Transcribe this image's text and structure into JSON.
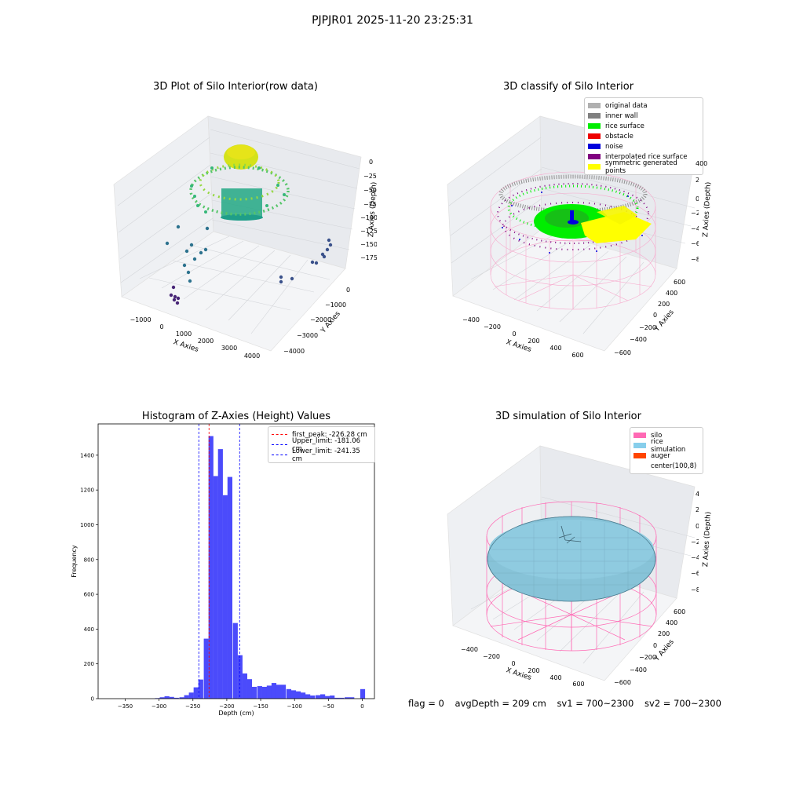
{
  "figure": {
    "suptitle": "PJPJR01 2025-11-20 23:25:31"
  },
  "panels": {
    "p1": {
      "title": "3D Plot of Silo Interior(row data)",
      "xlabel": "X Axies",
      "ylabel": "Y Axies",
      "zlabel": "Z Axies (Depth)",
      "xticks": [
        "−1000",
        "0",
        "1000",
        "2000",
        "3000",
        "4000"
      ],
      "yticks": [
        "0",
        "−1000",
        "−2000",
        "−3000",
        "−4000"
      ],
      "zticks": [
        "0",
        "−250",
        "−500",
        "−750",
        "−1000",
        "−1250",
        "−1500",
        "−1750"
      ]
    },
    "p2": {
      "title": "3D classify of Silo Interior",
      "xlabel": "X Axies",
      "ylabel": "Y Axies",
      "zlabel": "Z Axies (Depth)",
      "xticks": [
        "−400",
        "−200",
        "0",
        "200",
        "400",
        "600"
      ],
      "yticks": [
        "600",
        "400",
        "200",
        "0",
        "−200",
        "−400",
        "−600"
      ],
      "zticks": [
        "400",
        "200",
        "0",
        "−200",
        "−400",
        "−600",
        "−800"
      ],
      "legend": [
        {
          "label": "original data",
          "color": "#b0b0b0"
        },
        {
          "label": "inner wall",
          "color": "#808080"
        },
        {
          "label": "rice surface",
          "color": "#00ee00"
        },
        {
          "label": "obstacle",
          "color": "#ee0000"
        },
        {
          "label": "noise",
          "color": "#0000dd"
        },
        {
          "label": "interpolated rice surface",
          "color": "#800080"
        },
        {
          "label": "symmetric generated points",
          "color": "#ffff00"
        }
      ]
    },
    "p3": {
      "title": "Histogram of Z-Axies (Height) Values",
      "xlabel": "Depth (cm)",
      "ylabel": "Frequency",
      "legend": [
        {
          "label": "first_peak: -226.28 cm",
          "color": "#ff0000"
        },
        {
          "label": "Upper_limit: -181.06 cm",
          "color": "#0000ff"
        },
        {
          "label": "Lower_limit: -241.35 cm",
          "color": "#0000ff"
        }
      ]
    },
    "p4": {
      "title": "3D simulation of Silo Interior",
      "xlabel": "X Axies",
      "ylabel": "Y Axies",
      "zlabel": "Z Axies (Depth)",
      "xticks": [
        "−400",
        "−200",
        "0",
        "200",
        "400",
        "600"
      ],
      "yticks": [
        "600",
        "400",
        "200",
        "0",
        "−200",
        "−400",
        "−600"
      ],
      "zticks": [
        "400",
        "200",
        "0",
        "−200",
        "−400",
        "−600",
        "−800"
      ],
      "legend": [
        {
          "label": "silo",
          "color": "#ff69b4"
        },
        {
          "label": "rice simulation",
          "color": "#87ceeb"
        },
        {
          "label": "auger",
          "color": "#ff4500"
        },
        {
          "label": "center(100,8)",
          "color": "#ffffff"
        }
      ]
    }
  },
  "footer": {
    "flag": "flag = 0",
    "avg_depth": "avgDepth = 209 cm",
    "sv1": "sv1 = 700~2300",
    "sv2": "sv2 = 700~2300"
  },
  "chart_data": [
    {
      "type": "scatter",
      "title": "3D Plot of Silo Interior(row data)",
      "xlabel": "X Axies",
      "ylabel": "Y Axies",
      "zlabel": "Z Axies (Depth)",
      "xlim": [
        -1500,
        4500
      ],
      "ylim": [
        -4200,
        600
      ],
      "zlim": [
        -1950,
        150
      ],
      "note": "3D point cloud: dense ring of points near depth 0 to -1000, scattered outliers to depth -1750"
    },
    {
      "type": "scatter",
      "title": "3D classify of Silo Interior",
      "xlim": [
        -500,
        700
      ],
      "ylim": [
        -650,
        650
      ],
      "zlim": [
        -900,
        400
      ],
      "series": [
        {
          "name": "original data"
        },
        {
          "name": "inner wall"
        },
        {
          "name": "rice surface"
        },
        {
          "name": "obstacle"
        },
        {
          "name": "noise"
        },
        {
          "name": "interpolated rice surface"
        },
        {
          "name": "symmetric generated points"
        }
      ]
    },
    {
      "type": "bar",
      "title": "Histogram of Z-Axies (Height) Values",
      "xlabel": "Depth (cm)",
      "ylabel": "Frequency",
      "xlim": [
        -390,
        18
      ],
      "ylim": [
        0,
        1580
      ],
      "xticks": [
        -350,
        -300,
        -250,
        -200,
        -150,
        -100,
        -50,
        0
      ],
      "yticks": [
        0,
        200,
        400,
        600,
        800,
        1000,
        1200,
        1400
      ],
      "bin_width": 7.2,
      "bins": [
        [
          -385,
          0
        ],
        [
          -306,
          3
        ],
        [
          -299,
          8
        ],
        [
          -292,
          14
        ],
        [
          -285,
          10
        ],
        [
          -278,
          5
        ],
        [
          -270,
          8
        ],
        [
          -263,
          20
        ],
        [
          -256,
          35
        ],
        [
          -249,
          65
        ],
        [
          -242,
          110
        ],
        [
          -234,
          345
        ],
        [
          -227,
          1510
        ],
        [
          -220,
          1280
        ],
        [
          -213,
          1435
        ],
        [
          -206,
          1170
        ],
        [
          -199,
          1275
        ],
        [
          -191,
          435
        ],
        [
          -184,
          250
        ],
        [
          -177,
          145
        ],
        [
          -170,
          112
        ],
        [
          -163,
          68
        ],
        [
          -155,
          72
        ],
        [
          -148,
          68
        ],
        [
          -141,
          75
        ],
        [
          -134,
          90
        ],
        [
          -127,
          80
        ],
        [
          -120,
          80
        ],
        [
          -112,
          55
        ],
        [
          -105,
          48
        ],
        [
          -98,
          42
        ],
        [
          -91,
          35
        ],
        [
          -84,
          25
        ],
        [
          -77,
          18
        ],
        [
          -69,
          20
        ],
        [
          -62,
          25
        ],
        [
          -55,
          15
        ],
        [
          -48,
          18
        ],
        [
          -41,
          5
        ],
        [
          -34,
          5
        ],
        [
          -26,
          8
        ],
        [
          -19,
          8
        ],
        [
          -3,
          55
        ]
      ],
      "vlines": [
        {
          "name": "first_peak",
          "x": -226.28,
          "color": "#ff0000"
        },
        {
          "name": "Upper_limit",
          "x": -181.06,
          "color": "#0000ff"
        },
        {
          "name": "Lower_limit",
          "x": -241.35,
          "color": "#0000ff"
        }
      ]
    },
    {
      "type": "scatter",
      "title": "3D simulation of Silo Interior",
      "xlim": [
        -500,
        700
      ],
      "ylim": [
        -650,
        650
      ],
      "zlim": [
        -900,
        450
      ],
      "series": [
        {
          "name": "silo"
        },
        {
          "name": "rice simulation"
        },
        {
          "name": "auger"
        },
        {
          "name": "center(100,8)"
        }
      ]
    }
  ]
}
